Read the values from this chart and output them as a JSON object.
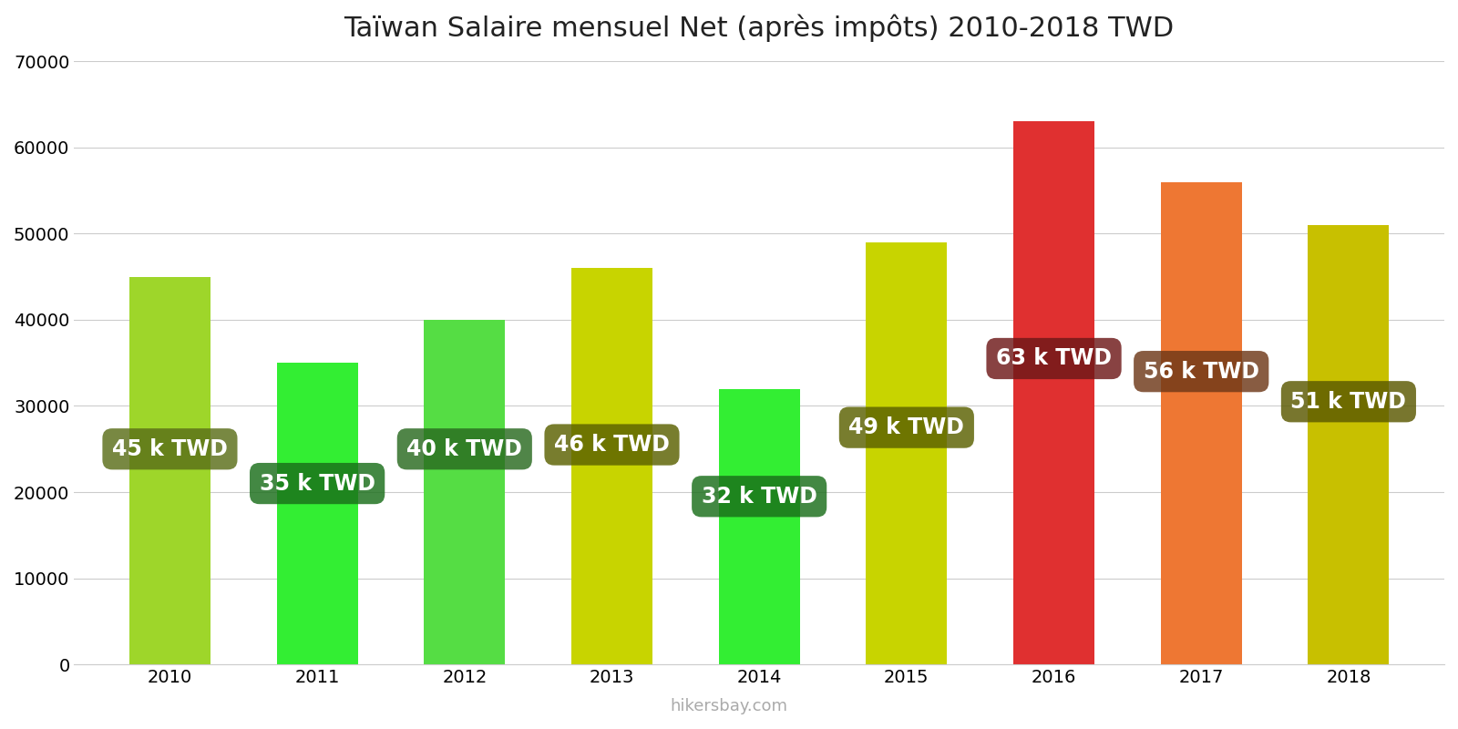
{
  "title": "Taïwan Salaire mensuel Net (après impôts) 2010-2018 TWD",
  "years": [
    2010,
    2011,
    2012,
    2013,
    2014,
    2015,
    2016,
    2017,
    2018
  ],
  "values": [
    45000,
    35000,
    40000,
    46000,
    32000,
    49000,
    63000,
    56000,
    51000
  ],
  "labels": [
    "45 k TWD",
    "35 k TWD",
    "40 k TWD",
    "46 k TWD",
    "32 k TWD",
    "49 k TWD",
    "63 k TWD",
    "56 k TWD",
    "51 k TWD"
  ],
  "bar_colors": [
    "#9ed62a",
    "#33ee33",
    "#55dd44",
    "#c8d400",
    "#33ee33",
    "#c8d400",
    "#e03030",
    "#ee7733",
    "#c8c000"
  ],
  "label_box_colors": [
    "#5a6e18",
    "#1a6e1a",
    "#2a6a20",
    "#5a6000",
    "#1a6e1a",
    "#5a6000",
    "#6e1818",
    "#6e3818",
    "#5a5800"
  ],
  "ylim": [
    0,
    70000
  ],
  "yticks": [
    0,
    10000,
    20000,
    30000,
    40000,
    50000,
    60000,
    70000
  ],
  "label_y_positions": [
    25000,
    21000,
    25000,
    25500,
    19500,
    27500,
    35500,
    34000,
    30500
  ],
  "watermark": "hikersbay.com",
  "background_color": "#ffffff",
  "title_fontsize": 22,
  "label_fontsize": 17,
  "tick_fontsize": 14,
  "bar_width": 0.55
}
